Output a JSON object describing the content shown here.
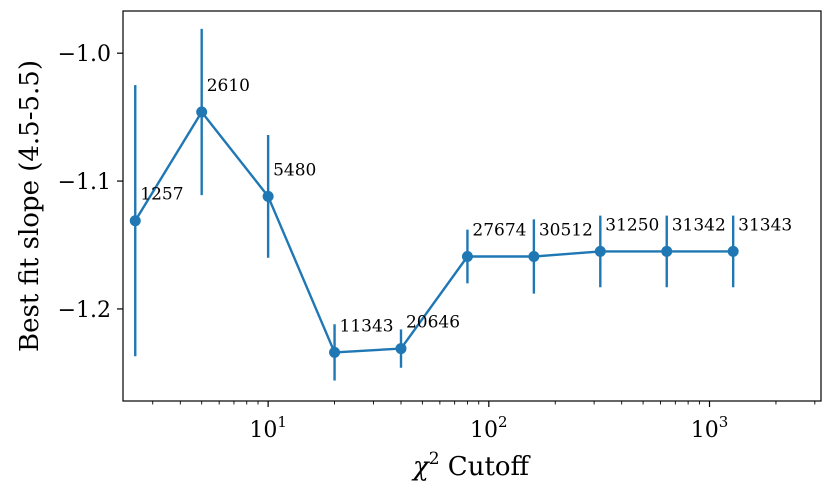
{
  "chart_data": {
    "type": "line",
    "xscale": "log",
    "xlim": [
      2.2,
      3200
    ],
    "ylim": [
      -1.272,
      -0.967
    ],
    "xlabel_parts": {
      "symbol": "χ",
      "superscript": "2",
      "text": " Cutoff"
    },
    "ylabel": "Best fit slope (4.5-5.5)",
    "x_ticks": [
      {
        "value": 10,
        "base": "10",
        "exp": "1"
      },
      {
        "value": 100,
        "base": "10",
        "exp": "2"
      },
      {
        "value": 1000,
        "base": "10",
        "exp": "3"
      }
    ],
    "y_ticks": [
      {
        "value": -1.0,
        "label": "−1.0"
      },
      {
        "value": -1.1,
        "label": "−1.1"
      },
      {
        "value": -1.2,
        "label": "−1.2"
      }
    ],
    "color": "#1f77b4",
    "grid": false,
    "series": [
      {
        "points": [
          {
            "x": 2.5,
            "y": -1.131,
            "err": 0.106,
            "label": "1257"
          },
          {
            "x": 5,
            "y": -1.046,
            "err": 0.065,
            "label": "2610"
          },
          {
            "x": 10,
            "y": -1.112,
            "err": 0.048,
            "label": "5480"
          },
          {
            "x": 20,
            "y": -1.234,
            "err": 0.022,
            "label": "11343"
          },
          {
            "x": 40,
            "y": -1.231,
            "err": 0.015,
            "label": "20646"
          },
          {
            "x": 80,
            "y": -1.159,
            "err": 0.021,
            "label": "27674"
          },
          {
            "x": 160,
            "y": -1.159,
            "err": 0.029,
            "label": "30512"
          },
          {
            "x": 320,
            "y": -1.155,
            "err": 0.028,
            "label": "31250"
          },
          {
            "x": 640,
            "y": -1.155,
            "err": 0.028,
            "label": "31342"
          },
          {
            "x": 1280,
            "y": -1.155,
            "err": 0.028,
            "label": "31343"
          }
        ]
      }
    ]
  }
}
